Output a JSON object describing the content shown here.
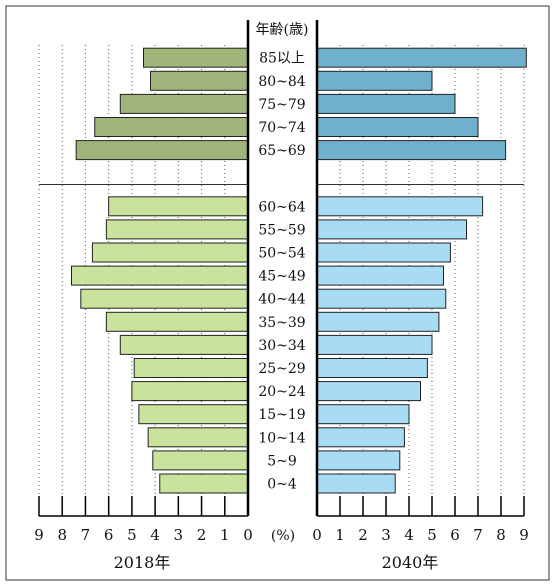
{
  "chart_data": {
    "type": "bar",
    "subtype": "population-pyramid",
    "title": "",
    "age_axis_label": "年齢(歳)",
    "unit_label": "(%)",
    "categories": [
      "85以上",
      "80~84",
      "75~79",
      "70~74",
      "65~69",
      "60~64",
      "55~59",
      "50~54",
      "45~49",
      "40~44",
      "35~39",
      "30~34",
      "25~29",
      "20~24",
      "15~19",
      "10~14",
      "5~9",
      "0~4"
    ],
    "series": [
      {
        "name": "2018年",
        "side": "left",
        "values": [
          4.5,
          4.2,
          5.5,
          6.6,
          7.4,
          6.0,
          6.1,
          6.7,
          7.6,
          7.2,
          6.1,
          5.5,
          4.9,
          5.0,
          4.7,
          4.3,
          4.1,
          3.8
        ]
      },
      {
        "name": "2040年",
        "side": "right",
        "values": [
          9.1,
          5.0,
          6.0,
          7.0,
          8.2,
          7.2,
          6.5,
          5.8,
          5.5,
          5.6,
          5.3,
          5.0,
          4.8,
          4.5,
          4.0,
          3.8,
          3.6,
          3.4
        ]
      }
    ],
    "xlim": [
      0,
      9
    ],
    "x_ticks": [
      "9",
      "8",
      "7",
      "6",
      "5",
      "4",
      "3",
      "2",
      "1",
      "0"
    ],
    "x_ticks_right": [
      "0",
      "1",
      "2",
      "3",
      "4",
      "5",
      "6",
      "7",
      "8",
      "9"
    ],
    "divider_after_category": "65~69",
    "grid": "vertical-dotted",
    "colors": {
      "left_upper": "#9fb57a",
      "left_lower": "#c9e39c",
      "right_upper": "#6fb0cc",
      "right_lower": "#a8dcf4",
      "bar_stroke": "#222222"
    }
  }
}
